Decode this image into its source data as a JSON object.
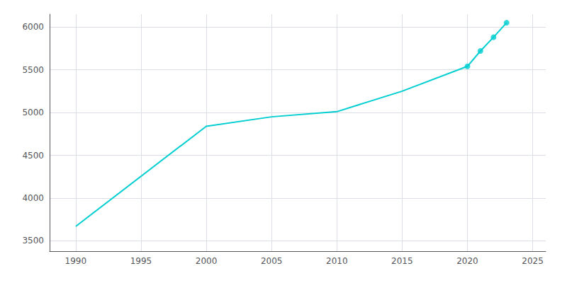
{
  "chart_data": {
    "type": "line",
    "grid": true,
    "xlim": [
      1988,
      2026
    ],
    "ylim": [
      3380,
      6150
    ],
    "xticks": [
      1990,
      1995,
      2000,
      2005,
      2010,
      2015,
      2020,
      2025
    ],
    "yticks": [
      3500,
      4000,
      4500,
      5000,
      5500,
      6000
    ],
    "series": [
      {
        "type": "line",
        "color": "#00CED1",
        "x": [
          1990,
          2000,
          2005,
          2010,
          2015,
          2020,
          2021,
          2022,
          2023
        ],
        "values": [
          3670,
          4840,
          4950,
          5010,
          5250,
          5540,
          5720,
          5880,
          6050
        ]
      },
      {
        "type": "scatter",
        "color": "#00CED1",
        "marker": "circle",
        "x": [
          2020,
          2021,
          2022,
          2023
        ],
        "values": [
          5540,
          5720,
          5880,
          6050
        ]
      }
    ]
  }
}
